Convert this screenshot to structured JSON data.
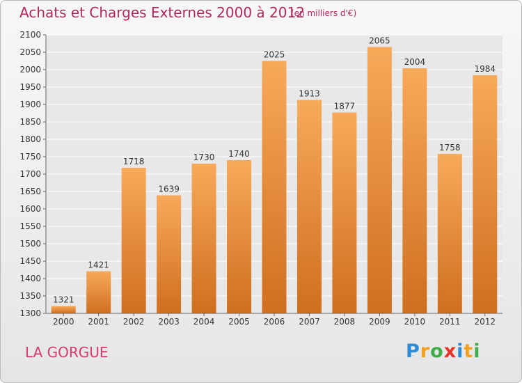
{
  "title": "Achats et Charges Externes 2000 à 2012",
  "unit": "(en milliers d'€)",
  "place": "LA GORGUE",
  "brand": {
    "letters": [
      "P",
      "r",
      "o",
      "x",
      "i",
      "t",
      "i"
    ],
    "colors": [
      "#2c8ad6",
      "#f2a01d",
      "#3fae49",
      "#e8332a",
      "#2c8ad6",
      "#f2a01d",
      "#3fae49"
    ]
  },
  "colors": {
    "bar_light": "#f8a95a",
    "bar_dark": "#cf6f1f",
    "grid": "#ffffff",
    "axis": "#666666",
    "text": "#333333"
  },
  "chart_data": {
    "type": "bar",
    "categories": [
      "2000",
      "2001",
      "2002",
      "2003",
      "2004",
      "2005",
      "2006",
      "2007",
      "2008",
      "2009",
      "2010",
      "2011",
      "2012"
    ],
    "values": [
      1321,
      1421,
      1718,
      1639,
      1730,
      1740,
      2025,
      1913,
      1877,
      2065,
      2004,
      1758,
      1984
    ],
    "ylim": [
      1300,
      2100
    ],
    "yticks": [
      1300,
      1350,
      1400,
      1450,
      1500,
      1550,
      1600,
      1650,
      1700,
      1750,
      1800,
      1850,
      1900,
      1950,
      2000,
      2050,
      2100
    ],
    "grid": true,
    "data_labels": true
  }
}
